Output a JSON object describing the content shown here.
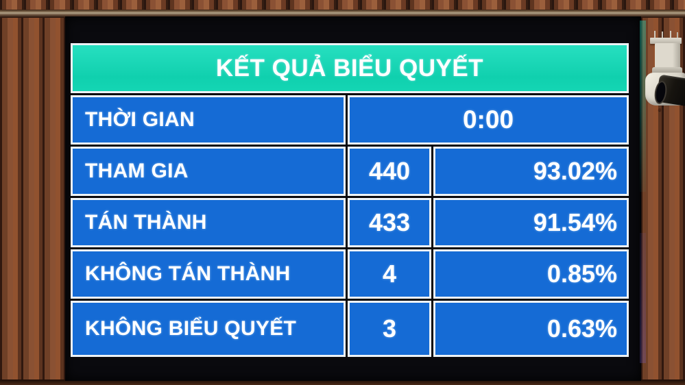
{
  "header": {
    "title": "KẾT QUẢ BIỂU QUYẾT"
  },
  "table": {
    "rows": [
      {
        "label": "THỜI GIAN",
        "value": "0:00"
      },
      {
        "label": "THAM GIA",
        "value": "440",
        "percent": "93.02%"
      },
      {
        "label": "TÁN THÀNH",
        "value": "433",
        "percent": "91.54%"
      },
      {
        "label": "KHÔNG TÁN THÀNH",
        "value": "4",
        "percent": "0.85%"
      },
      {
        "label": "KHÔNG BIỂU QUYẾT",
        "value": "3",
        "percent": "0.63%"
      }
    ]
  },
  "chart_data": {
    "type": "table",
    "title": "KẾT QUẢ BIỂU QUYẾT",
    "columns": [
      "category",
      "count",
      "percent"
    ],
    "rows": [
      [
        "THỜI GIAN",
        "0:00",
        null
      ],
      [
        "THAM GIA",
        440,
        "93.02%"
      ],
      [
        "TÁN THÀNH",
        433,
        "91.54%"
      ],
      [
        "KHÔNG TÁN THÀNH",
        4,
        "0.85%"
      ],
      [
        "KHÔNG BIỂU QUYẾT",
        3,
        "0.63%"
      ]
    ]
  },
  "colors": {
    "header_teal": "#14d4b4",
    "cell_blue": "#156bd5",
    "grid_line_white": "#edf3f6",
    "text_white": "#ffffff",
    "bezel_black": "#0a0a0e",
    "wood_brown": "#6f4027"
  }
}
